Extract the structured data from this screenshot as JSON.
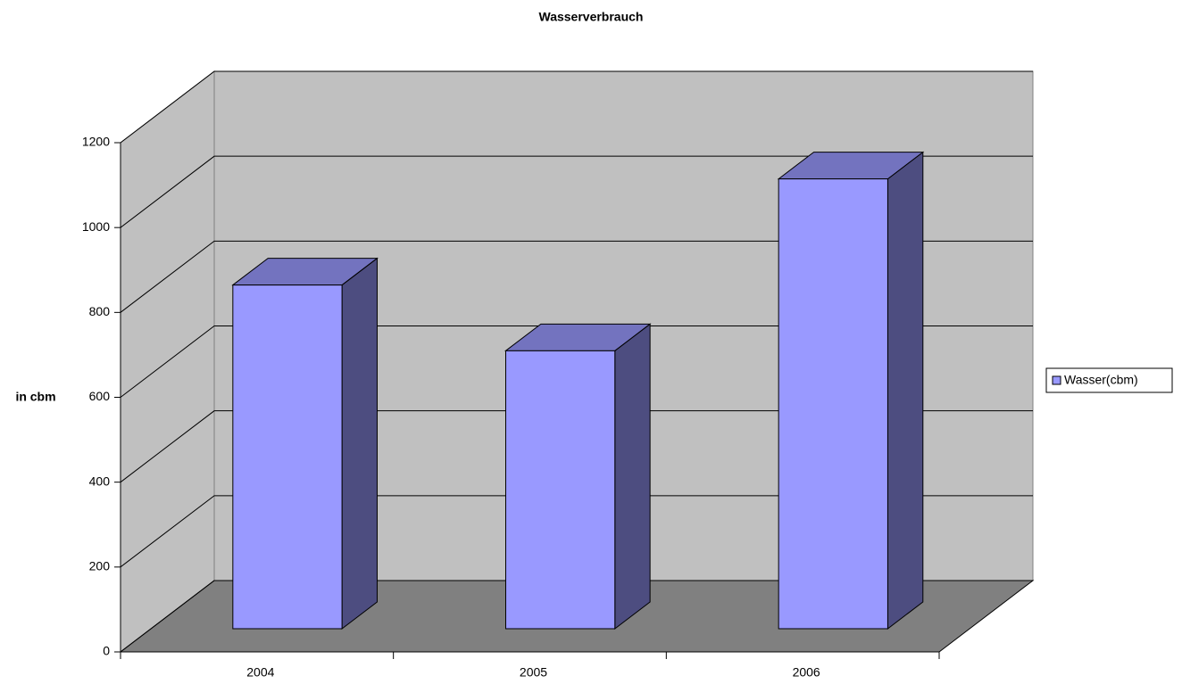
{
  "chart_data": {
    "type": "bar",
    "title": "Wasserverbrauch",
    "y_label": "in cbm",
    "categories": [
      "2004",
      "2005",
      "2006"
    ],
    "series": [
      {
        "name": "Wasser(cbm)",
        "color": "#9999ff",
        "values": [
          810,
          655,
          1060
        ]
      }
    ],
    "ylim": [
      0,
      1200
    ],
    "yticks": [
      0,
      200,
      400,
      600,
      800,
      1000,
      1200
    ],
    "grid": true,
    "legend": "right",
    "three_d": true
  }
}
